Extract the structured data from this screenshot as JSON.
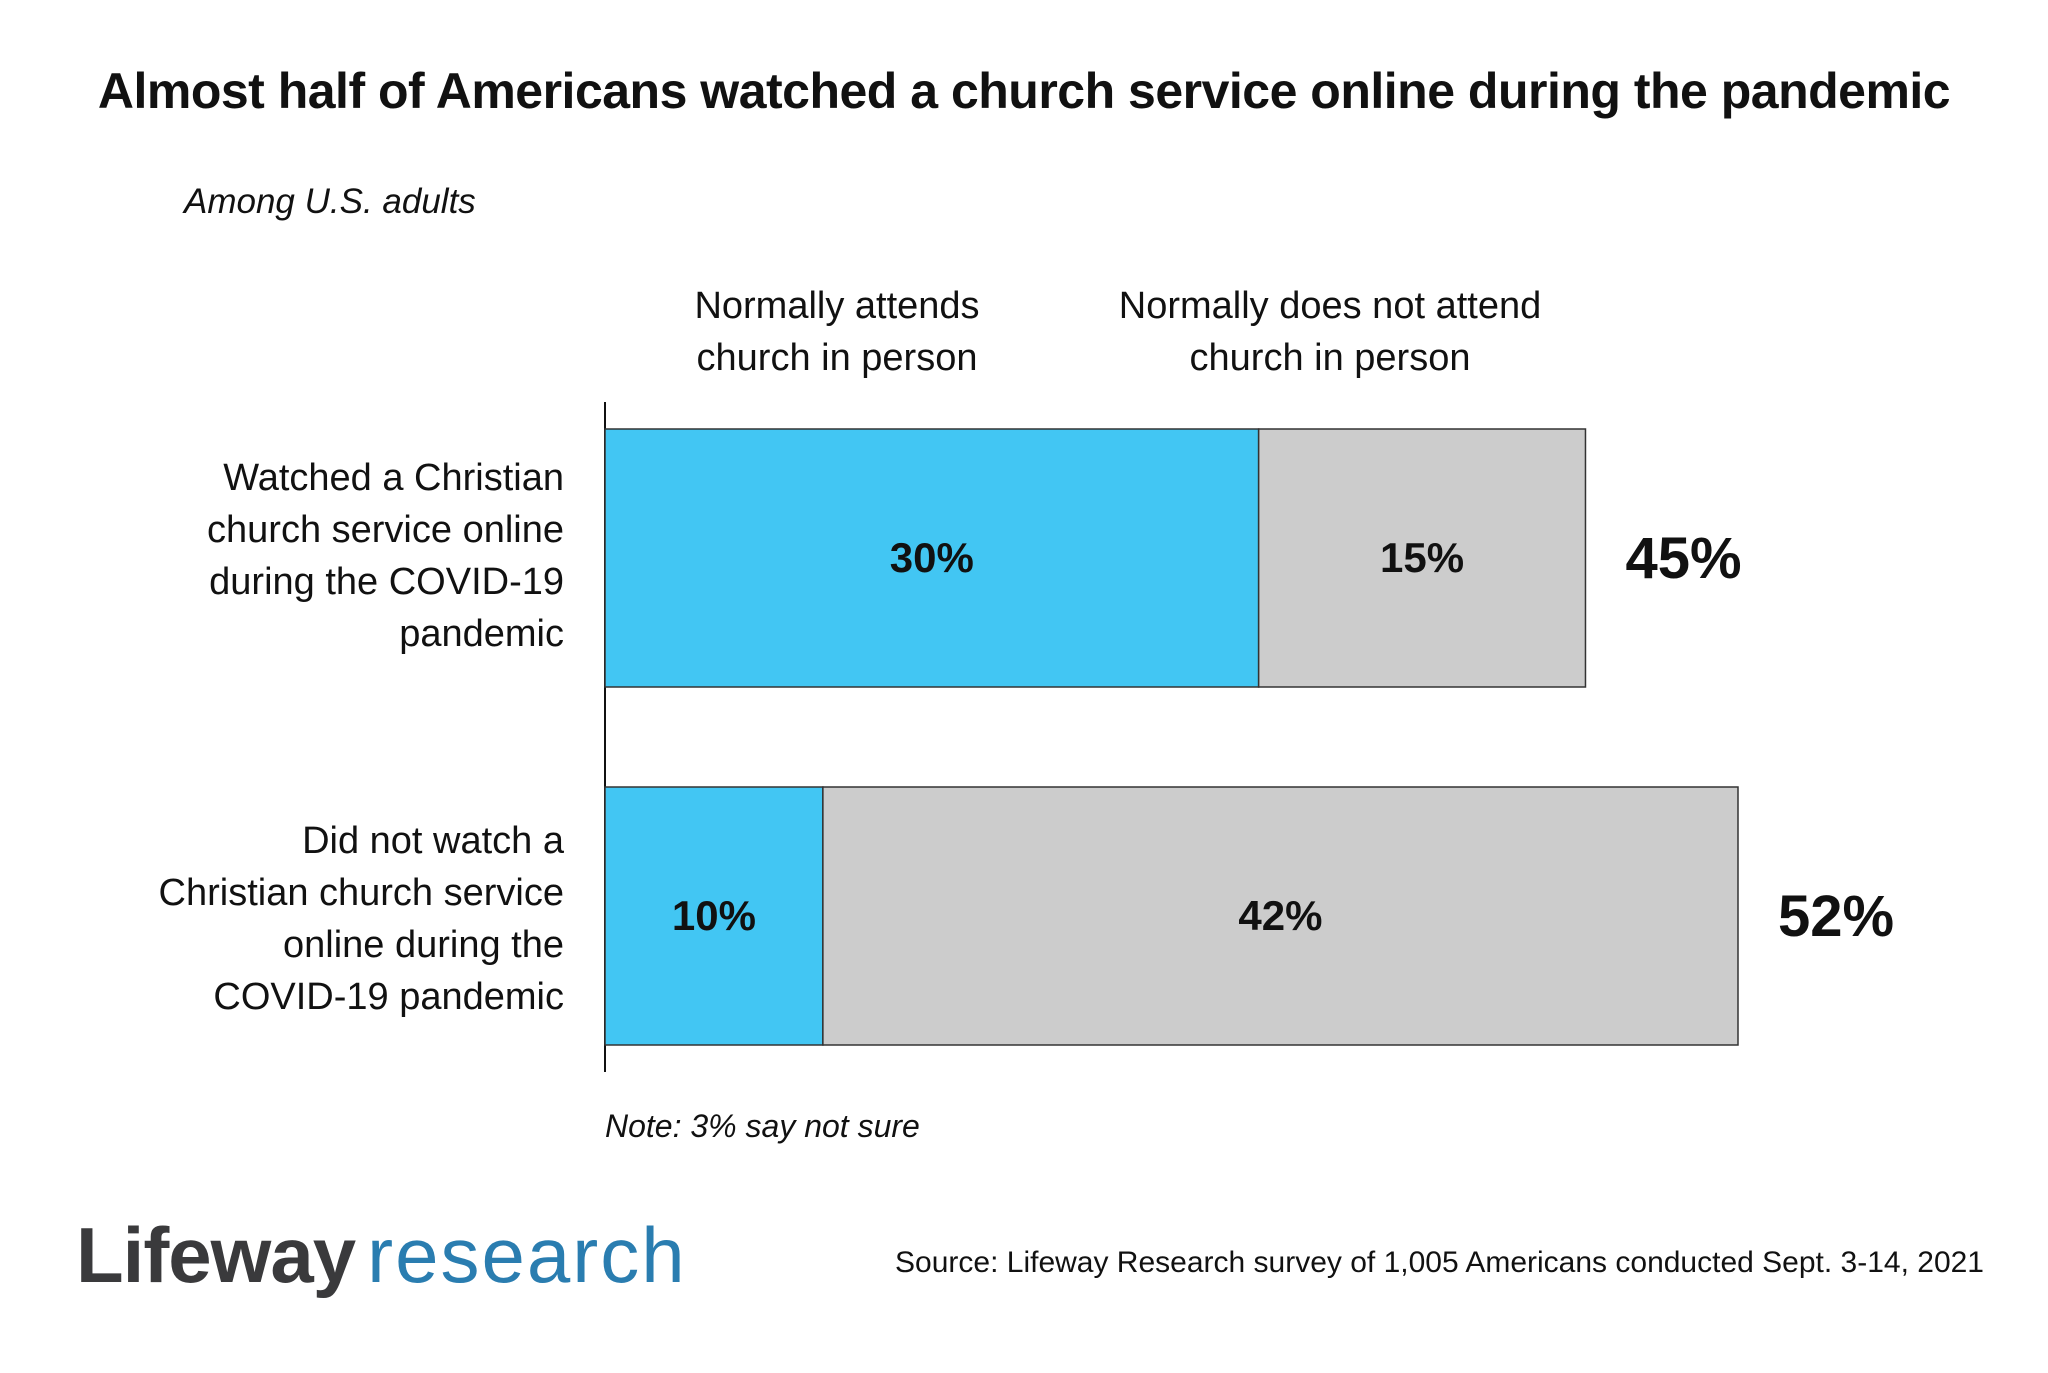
{
  "chart_data": {
    "type": "bar",
    "orientation": "horizontal",
    "stacked": true,
    "title": "Almost half of Americans watched a church service online during the pandemic",
    "subtitle": "Among U.S. adults",
    "categories": [
      "Watched a Christian church service online during the COVID-19 pandemic",
      "Did not watch a Christian church service online during the COVID-19 pandemic"
    ],
    "category_lines": [
      [
        "Watched a Christian",
        "church service online",
        "during the COVID-19",
        "pandemic"
      ],
      [
        "Did not watch a",
        "Christian church service",
        "online during the",
        "COVID-19 pandemic"
      ]
    ],
    "series": [
      {
        "name": "Normally attends church in person",
        "header_lines": [
          "Normally attends",
          "church in person"
        ],
        "color": "#42c6f3",
        "values": [
          30,
          10
        ]
      },
      {
        "name": "Normally does not attend church in person",
        "header_lines": [
          "Normally does not attend",
          "church in person"
        ],
        "color": "#cccccc",
        "values": [
          15,
          42
        ]
      }
    ],
    "segment_labels": [
      [
        "30%",
        "15%"
      ],
      [
        "10%",
        "42%"
      ]
    ],
    "total_labels": [
      "45%",
      "52%"
    ],
    "totals": [
      45,
      52
    ],
    "xlim": [
      0,
      52
    ],
    "grid": false,
    "legend": "top",
    "note": "Note: 3% say not sure"
  },
  "footer": {
    "brand_strong": "Lifeway",
    "brand_light": "research",
    "source": "Source: Lifeway Research survey of 1,005 Americans conducted Sept. 3-14, 2021"
  }
}
